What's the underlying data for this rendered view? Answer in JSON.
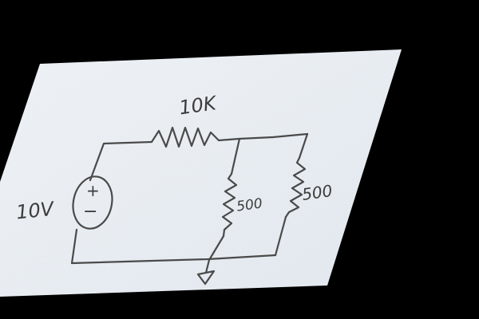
{
  "colors": {
    "background": "#000000",
    "paper": "#eef3f8",
    "ink": "#4a4a4a"
  },
  "diagram": {
    "type": "circuit-schematic-handdrawn",
    "labels": {
      "source_value": "10V",
      "source_plus": "+",
      "source_minus": "−",
      "top_resistor": "10K",
      "middle_resistor": "500",
      "right_resistor": "500"
    },
    "components": [
      {
        "kind": "voltage-source",
        "label_key": "source_value"
      },
      {
        "kind": "resistor",
        "label_key": "top_resistor"
      },
      {
        "kind": "resistor",
        "label_key": "middle_resistor"
      },
      {
        "kind": "resistor",
        "label_key": "right_resistor"
      },
      {
        "kind": "ground"
      }
    ]
  }
}
